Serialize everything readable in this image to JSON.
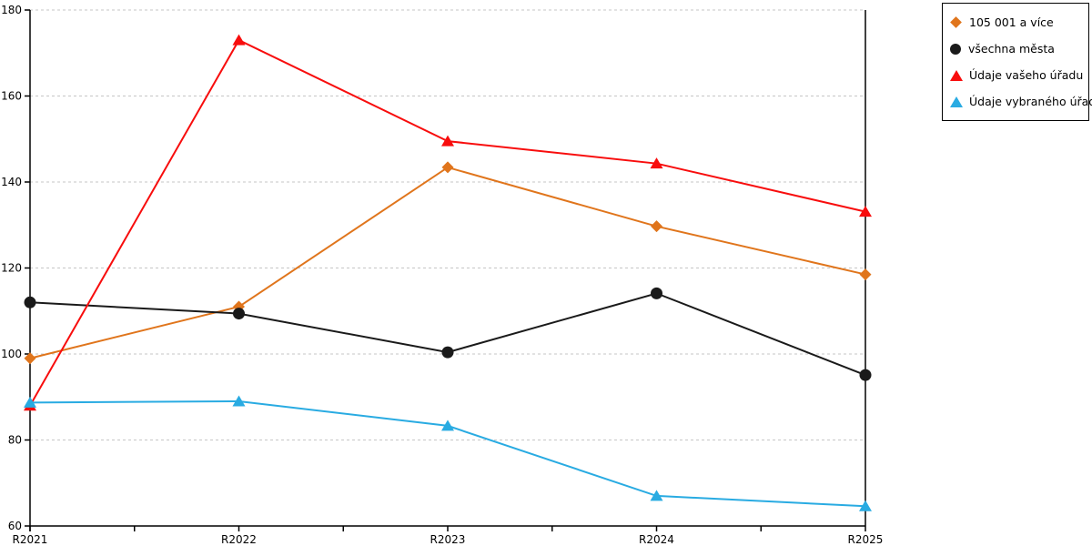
{
  "chart_data": {
    "type": "line",
    "x": [
      "R2021",
      "R2022",
      "R2023",
      "R2024",
      "R2025"
    ],
    "series": [
      {
        "name": "105 001 a více",
        "marker": "diamond",
        "color": "#E0751C",
        "values": [
          99,
          111,
          143.4,
          129.7,
          118.5
        ]
      },
      {
        "name": "všechna města",
        "marker": "circle",
        "color": "#1A1A1A",
        "values": [
          112,
          109.4,
          100.4,
          114.1,
          95.1
        ]
      },
      {
        "name": "Údaje vašeho úřadu",
        "marker": "triangle",
        "color": "#F80D0D",
        "values": [
          88,
          173,
          149.5,
          144.3,
          133.1
        ]
      },
      {
        "name": "Údaje vybraného úřadu",
        "marker": "triangle",
        "color": "#29ABE2",
        "values": [
          88.7,
          89,
          83.3,
          67,
          64.6
        ]
      }
    ],
    "title": "",
    "xlabel": "",
    "ylabel": "",
    "ylim": [
      60,
      180
    ],
    "ytick_step": 20,
    "yticks": [
      60,
      80,
      100,
      120,
      140,
      160,
      180
    ],
    "grid": "horizontal-dashed",
    "grid_color": "#C6C6C6",
    "axis_color": "#000000",
    "legend_position": "top-right"
  }
}
